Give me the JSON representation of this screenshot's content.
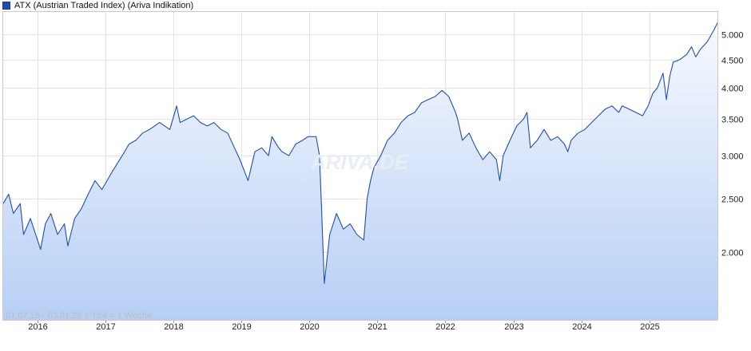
{
  "legend": {
    "label": "ATX (Austrian Traded Index) (Ariva Indikation)",
    "color": "#1f4fae"
  },
  "watermark": "ARIVA.DE",
  "footer_note": "01.07.15 - 03.01.26   1 Tick = 1 Woche",
  "chart_data": {
    "type": "area",
    "title": "",
    "xlabel": "",
    "ylabel": "",
    "y_scale": "log",
    "ylim": [
      1500,
      5500
    ],
    "xlim": [
      2015.5,
      2026.0
    ],
    "grid": true,
    "legend_position": "top-left",
    "y_ticks": [
      {
        "value": 2000,
        "label": "2.000"
      },
      {
        "value": 2500,
        "label": "2.500"
      },
      {
        "value": 3000,
        "label": "3.000"
      },
      {
        "value": 3500,
        "label": "3.500"
      },
      {
        "value": 4000,
        "label": "4.000"
      },
      {
        "value": 4500,
        "label": "4.500"
      },
      {
        "value": 5000,
        "label": "5.000"
      }
    ],
    "x_ticks": [
      {
        "value": 2016,
        "label": "2016"
      },
      {
        "value": 2017,
        "label": "2017"
      },
      {
        "value": 2018,
        "label": "2018"
      },
      {
        "value": 2019,
        "label": "2019"
      },
      {
        "value": 2020,
        "label": "2020"
      },
      {
        "value": 2021,
        "label": "2021"
      },
      {
        "value": 2022,
        "label": "2022"
      },
      {
        "value": 2023,
        "label": "2023"
      },
      {
        "value": 2024,
        "label": "2024"
      },
      {
        "value": 2025,
        "label": "2025"
      }
    ],
    "series": [
      {
        "color": "#1f4fae",
        "x": [
          2015.5,
          2015.58,
          2015.65,
          2015.75,
          2015.8,
          2015.9,
          2016.05,
          2016.12,
          2016.2,
          2016.3,
          2016.4,
          2016.45,
          2016.55,
          2016.65,
          2016.75,
          2016.85,
          2016.95,
          2017.1,
          2017.25,
          2017.35,
          2017.45,
          2017.55,
          2017.65,
          2017.8,
          2017.95,
          2018.05,
          2018.1,
          2018.2,
          2018.3,
          2018.4,
          2018.5,
          2018.6,
          2018.7,
          2018.8,
          2018.9,
          2018.98,
          2019.1,
          2019.2,
          2019.3,
          2019.4,
          2019.45,
          2019.55,
          2019.6,
          2019.7,
          2019.8,
          2019.9,
          2019.98,
          2020.1,
          2020.15,
          2020.18,
          2020.22,
          2020.3,
          2020.4,
          2020.5,
          2020.6,
          2020.7,
          2020.8,
          2020.85,
          2020.9,
          2020.95,
          2021.05,
          2021.15,
          2021.25,
          2021.35,
          2021.45,
          2021.55,
          2021.65,
          2021.75,
          2021.85,
          2021.95,
          2022.05,
          2022.15,
          2022.18,
          2022.25,
          2022.35,
          2022.45,
          2022.55,
          2022.65,
          2022.75,
          2022.8,
          2022.85,
          2022.95,
          2023.05,
          2023.15,
          2023.2,
          2023.25,
          2023.35,
          2023.45,
          2023.55,
          2023.65,
          2023.75,
          2023.8,
          2023.85,
          2023.95,
          2024.05,
          2024.15,
          2024.25,
          2024.35,
          2024.45,
          2024.55,
          2024.6,
          2024.7,
          2024.8,
          2024.9,
          2024.98,
          2025.05,
          2025.12,
          2025.2,
          2025.25,
          2025.3,
          2025.35,
          2025.45,
          2025.55,
          2025.62,
          2025.68,
          2025.75,
          2025.85,
          2025.95,
          2026.0
        ],
        "values": [
          2450,
          2550,
          2350,
          2450,
          2150,
          2300,
          2020,
          2250,
          2350,
          2150,
          2250,
          2050,
          2300,
          2400,
          2550,
          2700,
          2600,
          2800,
          3000,
          3150,
          3200,
          3300,
          3350,
          3450,
          3350,
          3700,
          3450,
          3500,
          3550,
          3450,
          3400,
          3450,
          3350,
          3300,
          3100,
          2950,
          2700,
          3050,
          3100,
          3000,
          3250,
          3100,
          3050,
          3000,
          3150,
          3200,
          3250,
          3250,
          3000,
          2400,
          1750,
          2150,
          2350,
          2200,
          2250,
          2150,
          2100,
          2500,
          2700,
          2850,
          3000,
          3200,
          3300,
          3450,
          3550,
          3600,
          3750,
          3800,
          3850,
          3950,
          3850,
          3600,
          3500,
          3200,
          3300,
          3100,
          2950,
          3050,
          2950,
          2700,
          3000,
          3200,
          3400,
          3500,
          3600,
          3100,
          3200,
          3350,
          3200,
          3250,
          3150,
          3050,
          3200,
          3300,
          3350,
          3450,
          3550,
          3650,
          3700,
          3600,
          3700,
          3650,
          3600,
          3550,
          3700,
          3900,
          4000,
          4250,
          3800,
          4200,
          4450,
          4500,
          4600,
          4750,
          4550,
          4700,
          4850,
          5100,
          5250
        ]
      }
    ]
  }
}
